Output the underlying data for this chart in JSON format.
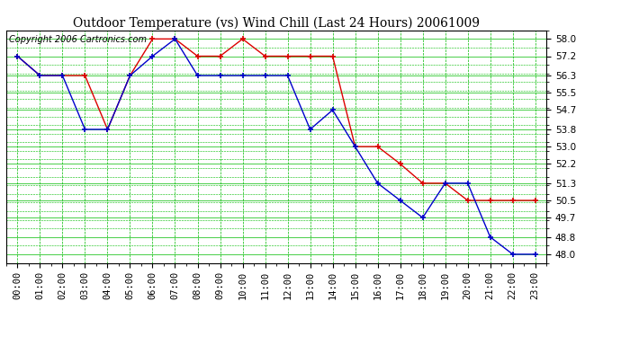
{
  "title": "Outdoor Temperature (vs) Wind Chill (Last 24 Hours) 20061009",
  "copyright": "Copyright 2006 Cartronics.com",
  "ylim": [
    47.6,
    58.4
  ],
  "yticks": [
    48.0,
    48.8,
    49.7,
    50.5,
    51.3,
    52.2,
    53.0,
    53.8,
    54.7,
    55.5,
    56.3,
    57.2,
    58.0
  ],
  "x_labels": [
    "00:00",
    "01:00",
    "02:00",
    "03:00",
    "04:00",
    "05:00",
    "06:00",
    "07:00",
    "08:00",
    "09:00",
    "10:00",
    "11:00",
    "12:00",
    "13:00",
    "14:00",
    "15:00",
    "16:00",
    "17:00",
    "18:00",
    "19:00",
    "20:00",
    "21:00",
    "22:00",
    "23:00"
  ],
  "temp": [
    57.2,
    56.3,
    56.3,
    56.3,
    53.8,
    56.3,
    58.0,
    58.0,
    57.2,
    57.2,
    58.0,
    57.2,
    57.2,
    57.2,
    57.2,
    53.0,
    53.0,
    52.2,
    51.3,
    51.3,
    50.5,
    50.5,
    50.5,
    50.5
  ],
  "windchill": [
    57.2,
    56.3,
    56.3,
    53.8,
    53.8,
    56.3,
    57.2,
    58.0,
    56.3,
    56.3,
    56.3,
    56.3,
    56.3,
    53.8,
    54.7,
    53.0,
    51.3,
    50.5,
    49.7,
    51.3,
    51.3,
    48.8,
    48.0,
    48.0
  ],
  "temp_color": "#dd0000",
  "windchill_color": "#0000cc",
  "grid_color": "#00bb00",
  "background_color": "#ffffff",
  "title_fontsize": 10,
  "copyright_fontsize": 7,
  "tick_fontsize": 7.5
}
